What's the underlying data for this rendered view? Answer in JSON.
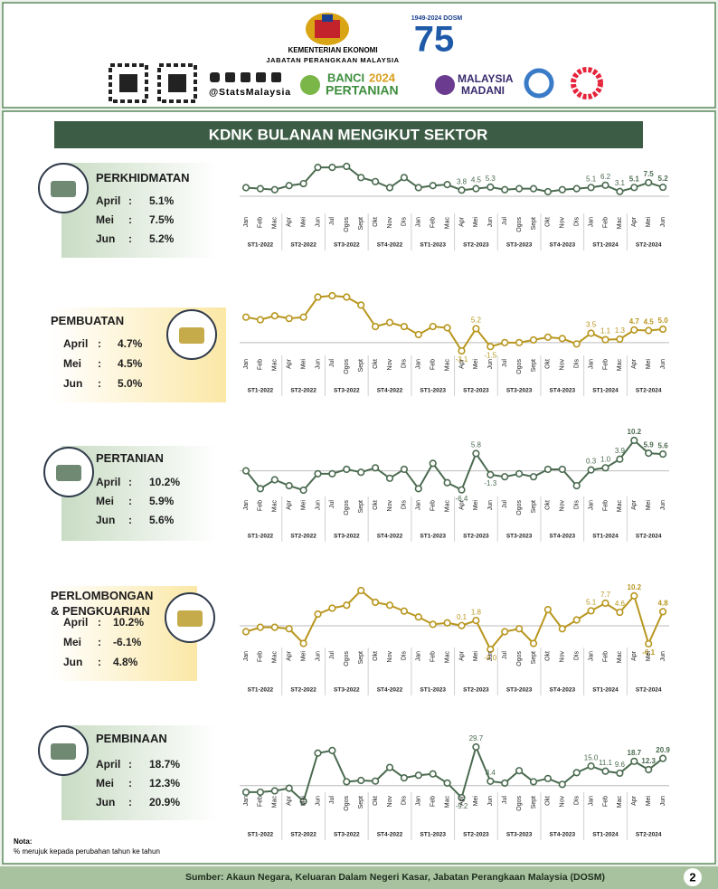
{
  "header": {
    "ministry": "KEMENTERIAN EKONOMI",
    "department": "JABATAN PERANGKAAN MALAYSIA",
    "social": "@StatsMalaysia",
    "anniversary": "1949-2024 DOSM",
    "anniversary_number": "75",
    "banci": [
      "BANCI",
      "2024",
      "PERTANIAN"
    ],
    "madani": [
      "MALAYSIA",
      "MADANI"
    ]
  },
  "title": "KDNK BULANAN MENGIKUT SEKTOR",
  "chart_data": [
    {
      "type": "line",
      "title": "PERKHIDMATAN",
      "color": "#4b6b50",
      "panel_color": "green",
      "categories": [
        "Jan",
        "Feb",
        "Mac",
        "Apr",
        "Mei",
        "Jun",
        "Jul",
        "Ogos",
        "Sept",
        "Okt",
        "Nov",
        "Dis",
        "Jan",
        "Feb",
        "Mac",
        "Apr",
        "Mei",
        "Jun",
        "Jul",
        "Ogos",
        "Sept",
        "Okt",
        "Nov",
        "Dis",
        "Jan",
        "Feb",
        "Mac",
        "Apr",
        "Mei",
        "Jun"
      ],
      "groups": [
        "ST1-2022",
        "ST2-2022",
        "ST3-2022",
        "ST4-2022",
        "ST1-2023",
        "ST2-2023",
        "ST3-2023",
        "ST4-2023",
        "ST1-2024",
        "ST2-2024"
      ],
      "values": [
        5,
        4.5,
        4,
        6,
        7,
        15,
        15,
        15.5,
        10,
        8,
        5,
        10,
        5,
        6,
        6.5,
        3.8,
        4.5,
        5.3,
        4,
        4.5,
        4.5,
        3,
        4,
        4.5,
        5.1,
        6.2,
        3.1,
        5.1,
        7.5,
        5.2
      ],
      "value_labels": [
        null,
        null,
        null,
        null,
        null,
        null,
        null,
        null,
        null,
        null,
        null,
        null,
        null,
        null,
        null,
        "3.8",
        "4.5",
        "5.3",
        null,
        null,
        null,
        null,
        null,
        null,
        "5.1",
        "6.2",
        "3.1",
        "5.1",
        "7.5",
        "5.2"
      ],
      "stats": [
        {
          "label": "April",
          "separator": ":",
          "value": "5.1%"
        },
        {
          "label": "Mei",
          "separator": ":",
          "value": "7.5%"
        },
        {
          "label": "Jun",
          "separator": ":",
          "value": "5.2%"
        }
      ]
    },
    {
      "type": "line",
      "title": "PEMBUATAN",
      "color": "#b8961e",
      "panel_color": "gold",
      "categories": [
        "Jan",
        "Feb",
        "Mac",
        "Apr",
        "Mei",
        "Jun",
        "Jul",
        "Ogos",
        "Sept",
        "Okt",
        "Nov",
        "Dis",
        "Jan",
        "Feb",
        "Mac",
        "Apr",
        "Mei",
        "Jun",
        "Jul",
        "Ogos",
        "Sept",
        "Okt",
        "Nov",
        "Dis",
        "Jan",
        "Feb",
        "Mac",
        "Apr",
        "Mei",
        "Jun"
      ],
      "groups": [
        "ST1-2022",
        "ST2-2022",
        "ST3-2022",
        "ST4-2022",
        "ST1-2023",
        "ST2-2023",
        "ST3-2023",
        "ST4-2023",
        "ST1-2024",
        "ST2-2024"
      ],
      "values": [
        9.5,
        8.5,
        10,
        9,
        9.5,
        17,
        17.5,
        17,
        14,
        6,
        7.5,
        6,
        3,
        6,
        5.5,
        -3.1,
        5.2,
        -1.5,
        0,
        0,
        1,
        2,
        1.5,
        -0.5,
        3.5,
        1.1,
        1.3,
        4.7,
        4.5,
        5.0
      ],
      "value_labels": [
        null,
        null,
        null,
        null,
        null,
        null,
        null,
        null,
        null,
        null,
        null,
        null,
        null,
        null,
        null,
        "-3.1",
        "5.2",
        "-1.5",
        null,
        null,
        null,
        null,
        null,
        null,
        "3.5",
        "1.1",
        "1.3",
        "4.7",
        "4.5",
        "5.0"
      ],
      "stats": [
        {
          "label": "April",
          "separator": ":",
          "value": "4.7%"
        },
        {
          "label": "Mei",
          "separator": ":",
          "value": "4.5%"
        },
        {
          "label": "Jun",
          "separator": ":",
          "value": "5.0%"
        }
      ]
    },
    {
      "type": "line",
      "title": "PERTANIAN",
      "color": "#4b6b50",
      "panel_color": "green",
      "categories": [
        "Jan",
        "Feb",
        "Mac",
        "Apr",
        "Mei",
        "Jun",
        "Jul",
        "Ogos",
        "Sept",
        "Okt",
        "Nov",
        "Dis",
        "Jan",
        "Feb",
        "Mac",
        "Apr",
        "Mei",
        "Jun",
        "Jul",
        "Ogos",
        "Sept",
        "Okt",
        "Nov",
        "Dis",
        "Jan",
        "Feb",
        "Mac",
        "Apr",
        "Mei",
        "Jun"
      ],
      "groups": [
        "ST1-2022",
        "ST2-2022",
        "ST3-2022",
        "ST4-2022",
        "ST1-2023",
        "ST2-2023",
        "ST3-2023",
        "ST4-2023",
        "ST1-2024",
        "ST2-2024"
      ],
      "values": [
        0,
        -6,
        -3,
        -5,
        -6.5,
        -1,
        -1,
        0.5,
        -0.5,
        1,
        -2.5,
        0.5,
        -6,
        2.5,
        -4,
        -6.4,
        5.8,
        -1.3,
        -2,
        -1,
        -2,
        0.5,
        0.5,
        -5,
        0.3,
        1.0,
        3.9,
        10.2,
        5.9,
        5.6
      ],
      "value_labels": [
        null,
        null,
        null,
        null,
        null,
        null,
        null,
        null,
        null,
        null,
        null,
        null,
        null,
        null,
        null,
        "-6.4",
        "5.8",
        "-1.3",
        null,
        null,
        null,
        null,
        null,
        null,
        "0.3",
        "1.0",
        "3.9",
        "10.2",
        "5.9",
        "5.6"
      ],
      "stats": [
        {
          "label": "April",
          "separator": ":",
          "value": "10.2%"
        },
        {
          "label": "Mei",
          "separator": ":",
          "value": "5.9%"
        },
        {
          "label": "Jun",
          "separator": ":",
          "value": "5.6%"
        }
      ]
    },
    {
      "type": "line",
      "title": "PERLOMBONGAN & PENGKUARIAN",
      "color": "#b8961e",
      "panel_color": "gold",
      "categories": [
        "Jan",
        "Feb",
        "Mac",
        "Apr",
        "Mei",
        "Jun",
        "Jul",
        "Ogos",
        "Sept",
        "Okt",
        "Nov",
        "Dis",
        "Jan",
        "Feb",
        "Mac",
        "Apr",
        "Mei",
        "Jun",
        "Jul",
        "Ogos",
        "Sept",
        "Okt",
        "Nov",
        "Dis",
        "Jan",
        "Feb",
        "Mac",
        "Apr",
        "Mei",
        "Jun"
      ],
      "groups": [
        "ST1-2022",
        "ST2-2022",
        "ST3-2022",
        "ST4-2022",
        "ST1-2023",
        "ST2-2023",
        "ST3-2023",
        "ST4-2023",
        "ST1-2024",
        "ST2-2024"
      ],
      "values": [
        -2,
        -0.5,
        -0.5,
        -1,
        -6,
        4,
        6,
        7,
        12,
        8,
        7,
        5,
        3,
        0.5,
        1,
        0.1,
        1.8,
        -8.0,
        -2,
        -1,
        -6,
        5.5,
        -1,
        2,
        5.1,
        7.7,
        4.6,
        10.2,
        -6.1,
        4.8
      ],
      "value_labels": [
        null,
        null,
        null,
        null,
        null,
        null,
        null,
        null,
        null,
        null,
        null,
        null,
        null,
        null,
        null,
        "0.1",
        "1.8",
        "-8.0",
        null,
        null,
        null,
        null,
        null,
        null,
        "5.1",
        "7.7",
        "4.6",
        "10.2",
        "-6.1",
        "4.8"
      ],
      "stats": [
        {
          "label": "April",
          "separator": ":",
          "value": "10.2%"
        },
        {
          "label": "Mei",
          "separator": ":",
          "value": "-6.1%"
        },
        {
          "label": "Jun",
          "separator": ":",
          "value": "4.8%"
        }
      ]
    },
    {
      "type": "line",
      "title": "PEMBINAAN",
      "color": "#4b6b50",
      "panel_color": "green",
      "categories": [
        "Jan",
        "Feb",
        "Mac",
        "Apr",
        "Mei",
        "Jun",
        "Jul",
        "Ogos",
        "Sept",
        "Okt",
        "Nov",
        "Dis",
        "Jan",
        "Feb",
        "Mac",
        "Apr",
        "Mei",
        "Jun",
        "Jul",
        "Ogos",
        "Sept",
        "Okt",
        "Nov",
        "Dis",
        "Jan",
        "Feb",
        "Mac",
        "Apr",
        "Mei",
        "Jun"
      ],
      "groups": [
        "ST1-2022",
        "ST2-2022",
        "ST3-2022",
        "ST4-2022",
        "ST1-2023",
        "ST2-2023",
        "ST3-2023",
        "ST4-2023",
        "ST1-2024",
        "ST2-2024"
      ],
      "values": [
        -5,
        -5,
        -4,
        -2,
        -12,
        25,
        27,
        3,
        4,
        3.5,
        14,
        6,
        8,
        9,
        2,
        -9.2,
        29.7,
        3.4,
        2,
        11.5,
        3,
        5.5,
        1,
        10,
        15.0,
        11.1,
        9.6,
        18.7,
        12.3,
        20.9
      ],
      "value_labels": [
        null,
        null,
        null,
        null,
        null,
        null,
        null,
        null,
        null,
        null,
        null,
        null,
        null,
        null,
        null,
        "-9.2",
        "29.7",
        "3.4",
        null,
        null,
        null,
        null,
        null,
        null,
        "15.0",
        "11.1",
        "9.6",
        "18.7",
        "12.3",
        "20.9"
      ],
      "stats": [
        {
          "label": "April",
          "separator": ":",
          "value": "18.7%"
        },
        {
          "label": "Mei",
          "separator": ":",
          "value": "12.3%"
        },
        {
          "label": "Jun",
          "separator": ":",
          "value": "20.9%"
        }
      ]
    }
  ],
  "note": {
    "title": "Nota:",
    "text": "% merujuk kepada perubahan tahun ke tahun"
  },
  "footer": {
    "source": "Sumber: Akaun Negara, Keluaran Dalam Negeri Kasar, Jabatan Perangkaan Malaysia (DOSM)",
    "page": "2"
  }
}
